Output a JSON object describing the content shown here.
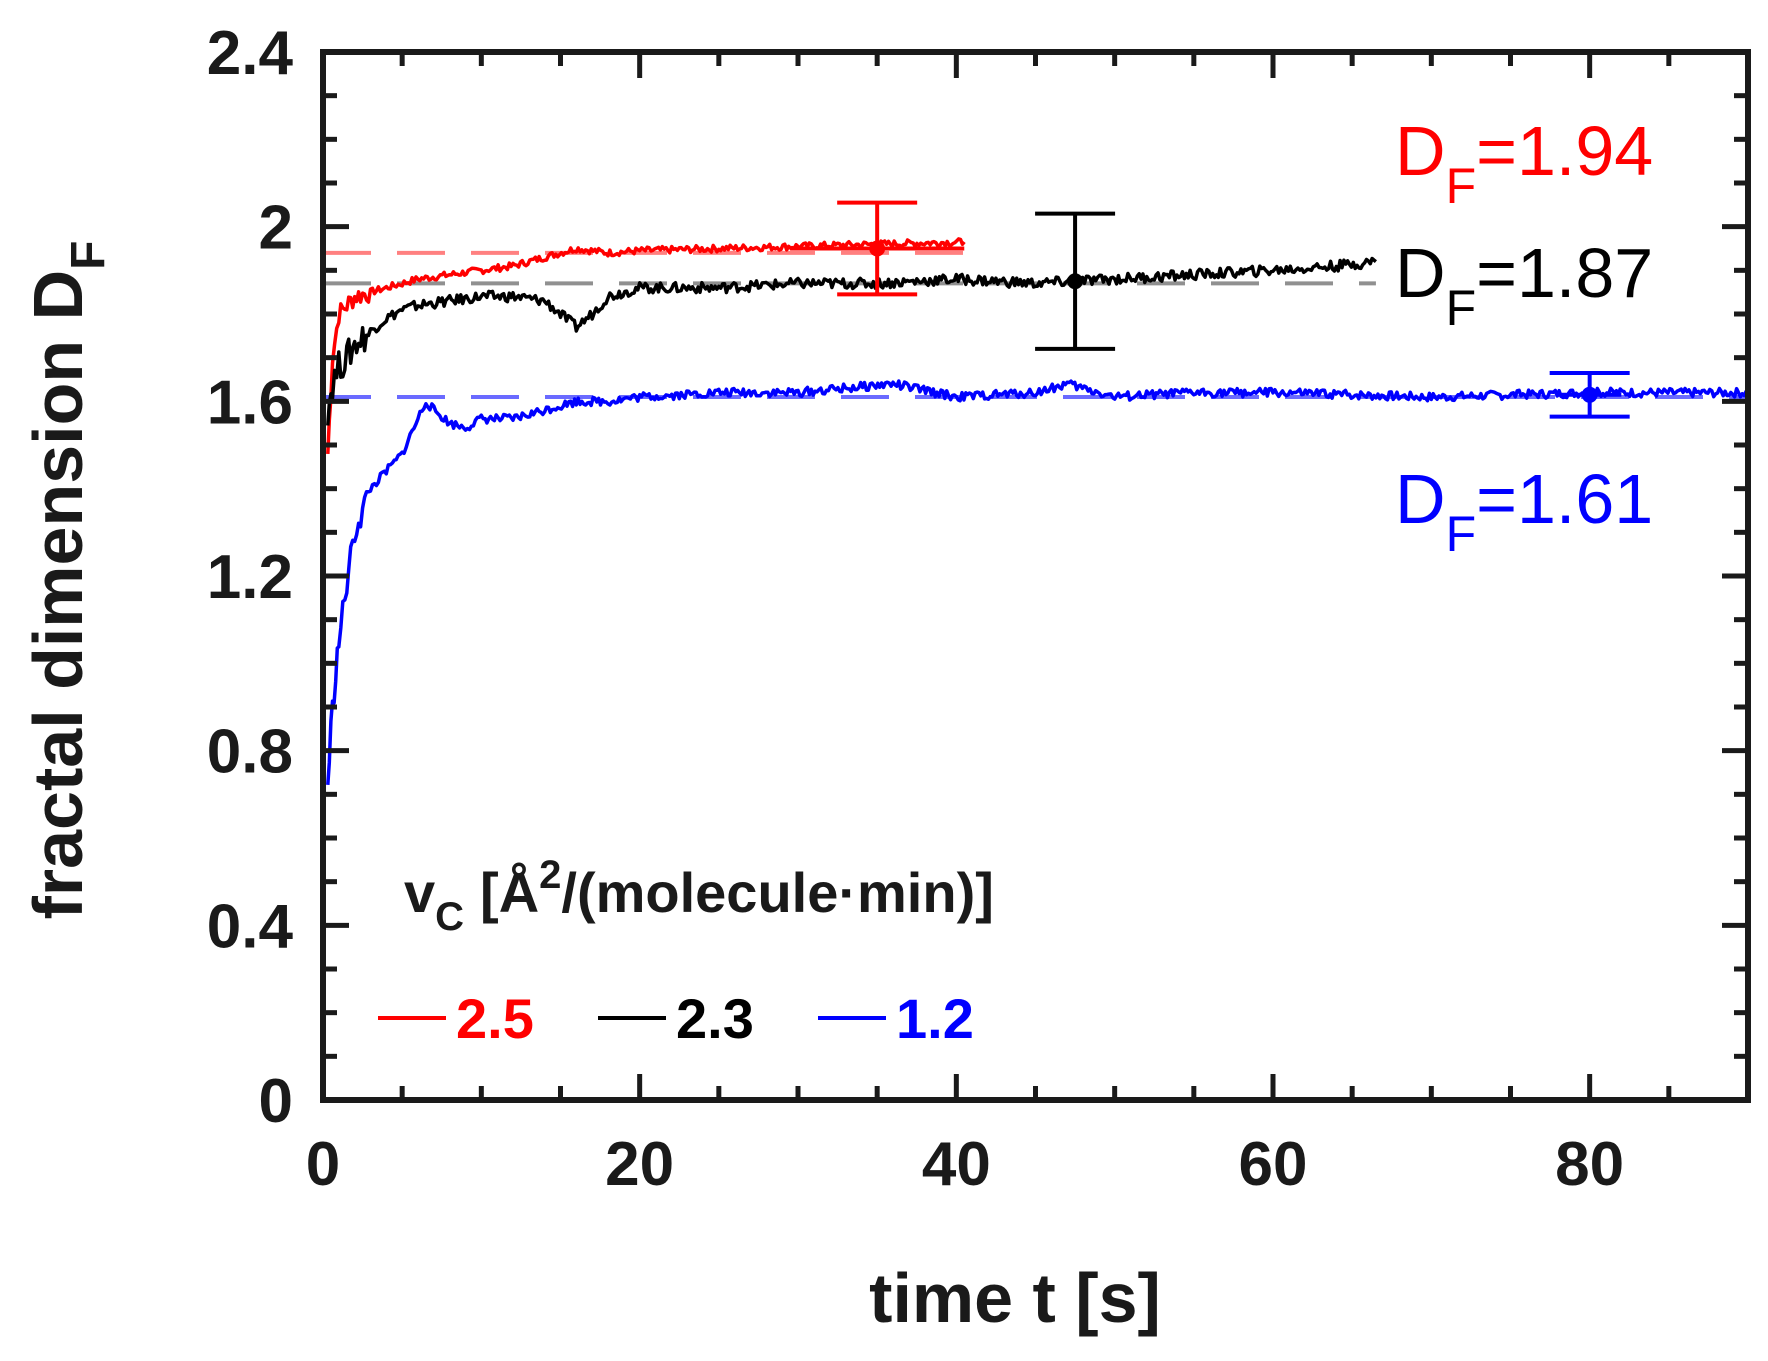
{
  "chart_data": {
    "type": "line",
    "title": "",
    "xlabel": "time t [s]",
    "ylabel": {
      "main": "fractal dimension D",
      "sub": "F"
    },
    "xlim": [
      0,
      90
    ],
    "ylim": [
      0,
      2.4
    ],
    "x_ticks": [
      0,
      20,
      40,
      60,
      80
    ],
    "x_tick_labels": [
      "0",
      "20",
      "40",
      "60",
      "80"
    ],
    "y_ticks": [
      0,
      0.4,
      0.8,
      1.2,
      1.6,
      2.0,
      2.4
    ],
    "y_tick_labels": [
      "0",
      "0.4",
      "0.8",
      "1.2",
      "1.6",
      "2",
      "2.4"
    ],
    "grid": false,
    "legend": {
      "placement": "bottom-left",
      "title": {
        "v": "v",
        "sub": "C",
        "pre": "[Å",
        "sup": "2",
        "post": "/(molecule·min)]"
      },
      "entries": [
        {
          "label": "2.5",
          "color": "#ff0000"
        },
        {
          "label": "2.3",
          "color": "#000000"
        },
        {
          "label": "1.2",
          "color": "#0000ff"
        }
      ]
    },
    "series": [
      {
        "name": "2.5",
        "color": "#ff0000",
        "x": [
          0.3,
          0.6,
          1,
          1.5,
          2,
          3,
          4,
          5,
          6,
          8,
          10,
          12,
          14,
          16,
          18,
          20,
          25,
          30,
          35,
          40.5
        ],
        "y": [
          1.48,
          1.7,
          1.8,
          1.82,
          1.84,
          1.85,
          1.86,
          1.87,
          1.88,
          1.89,
          1.9,
          1.91,
          1.93,
          1.95,
          1.94,
          1.945,
          1.95,
          1.955,
          1.96,
          1.965
        ],
        "fit_DF": 1.94,
        "fit_label": "D",
        "fit_sub": "F",
        "fit_value": "=1.94",
        "marker_x": 35,
        "marker_y": 1.95,
        "yerr": 0.105,
        "xerr": 5.5
      },
      {
        "name": "2.3",
        "color": "#000000",
        "x": [
          0.3,
          0.6,
          1,
          1.5,
          2,
          3,
          4,
          5,
          6,
          8,
          10,
          12,
          14,
          15,
          16,
          17,
          18,
          20,
          25,
          30,
          35,
          40,
          45,
          50,
          55,
          60,
          64,
          66.5
        ],
        "y": [
          1.58,
          1.64,
          1.68,
          1.7,
          1.73,
          1.76,
          1.79,
          1.81,
          1.82,
          1.83,
          1.84,
          1.84,
          1.83,
          1.8,
          1.77,
          1.8,
          1.84,
          1.86,
          1.86,
          1.87,
          1.87,
          1.88,
          1.87,
          1.88,
          1.89,
          1.9,
          1.91,
          1.92
        ],
        "fit_DF": 1.87,
        "fit_label": "D",
        "fit_sub": "F",
        "fit_value": "=1.87",
        "marker_x": 47.5,
        "marker_y": 1.875,
        "yerr": 0.155
      },
      {
        "name": "1.2",
        "color": "#0000ff",
        "x": [
          0.3,
          0.5,
          0.8,
          1,
          1.5,
          2,
          2.5,
          3,
          4,
          5,
          6,
          6.5,
          7,
          8,
          9,
          10,
          12,
          14,
          16,
          18,
          20,
          25,
          30,
          36,
          40,
          45,
          47,
          50,
          55,
          60,
          70,
          80,
          90
        ],
        "y": [
          0.72,
          0.85,
          0.98,
          1.05,
          1.18,
          1.3,
          1.35,
          1.4,
          1.44,
          1.48,
          1.56,
          1.6,
          1.58,
          1.55,
          1.54,
          1.56,
          1.56,
          1.58,
          1.6,
          1.6,
          1.61,
          1.62,
          1.62,
          1.64,
          1.61,
          1.62,
          1.64,
          1.61,
          1.62,
          1.62,
          1.61,
          1.62,
          1.62
        ],
        "fit_DF": 1.61,
        "fit_label": "D",
        "fit_sub": "F",
        "fit_value": "=1.61",
        "marker_x": 80,
        "marker_y": 1.615,
        "yerr": 0.05,
        "xerr": 2
      }
    ]
  }
}
